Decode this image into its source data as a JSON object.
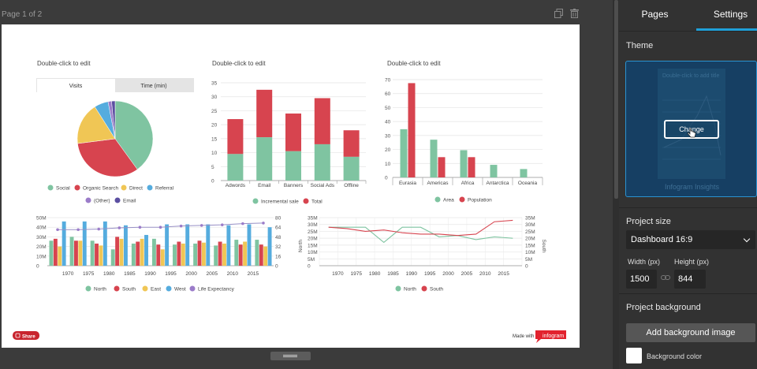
{
  "editor": {
    "page_label": "Page 1 of 2"
  },
  "charts": {
    "pie": {
      "title": "Double-click to edit",
      "tabs": [
        "Visits",
        "Time (min)"
      ],
      "legend": [
        "Social",
        "Organic Search",
        "Direct",
        "Referral",
        "(Other)",
        "Email"
      ],
      "colors": [
        "#7fc4a1",
        "#d7444f",
        "#f0c655",
        "#55acde",
        "#9b7cc9",
        "#5b4fa1"
      ]
    },
    "stack": {
      "title": "Double-click to edit",
      "legend": [
        "Incremental sale",
        "Total"
      ],
      "yticks": [
        "35",
        "30",
        "25",
        "20",
        "15",
        "10",
        "5",
        "0"
      ]
    },
    "bars2": {
      "title": "Double-click to edit",
      "legend": [
        "Area",
        "Population"
      ],
      "yticks": [
        "70",
        "60",
        "50",
        "40",
        "30",
        "20",
        "10",
        "0"
      ]
    },
    "combo": {
      "legend": [
        "North",
        "South",
        "East",
        "West",
        "Life Expectancy"
      ],
      "yticks_left": [
        "50M",
        "40M",
        "30M",
        "20M",
        "10M",
        "0"
      ],
      "yticks_right": [
        "80",
        "64",
        "48",
        "32",
        "16",
        "0"
      ]
    },
    "lines": {
      "legend": [
        "North",
        "South"
      ],
      "yticks": [
        "35M",
        "30M",
        "25M",
        "20M",
        "15M",
        "10M",
        "5M",
        "0"
      ],
      "yticks_right": [
        "35M",
        "30M",
        "25M",
        "20M",
        "15M",
        "10M",
        "5M",
        "0"
      ],
      "ylabel_left": "North",
      "ylabel_right": "South"
    }
  },
  "chart_data": [
    {
      "type": "pie",
      "title": "Double-click to edit",
      "categories": [
        "Social",
        "Organic Search",
        "Direct",
        "Referral",
        "(Other)",
        "Email"
      ],
      "values": [
        40,
        33,
        18,
        6,
        1.5,
        1.5
      ]
    },
    {
      "type": "bar",
      "title": "Double-click to edit",
      "categories": [
        "Adwords",
        "Email",
        "Banners",
        "Social Ads",
        "Offline"
      ],
      "series": [
        {
          "name": "Incremental sale",
          "values": [
            9.5,
            15.5,
            10.5,
            13,
            8.5
          ]
        },
        {
          "name": "Total",
          "values": [
            22,
            32.5,
            24,
            29.5,
            18
          ]
        }
      ],
      "ylim": [
        0,
        35
      ]
    },
    {
      "type": "bar",
      "title": "Double-click to edit",
      "categories": [
        "Eurasia",
        "Americas",
        "Africa",
        "Antarctica",
        "Oceania"
      ],
      "series": [
        {
          "name": "Area",
          "values": [
            34.5,
            27,
            19.5,
            9,
            6
          ]
        },
        {
          "name": "Population",
          "values": [
            67.5,
            14.5,
            14.5,
            0,
            0
          ]
        }
      ],
      "ylim": [
        0,
        70
      ]
    },
    {
      "type": "bar",
      "categories": [
        "1965",
        "1970",
        "1975",
        "1980",
        "1985",
        "1990",
        "1995",
        "2000",
        "2005",
        "2010",
        "2015"
      ],
      "series": [
        {
          "name": "North",
          "values": [
            26,
            30,
            26,
            17,
            23,
            28,
            22,
            23,
            21,
            27,
            27
          ]
        },
        {
          "name": "South",
          "values": [
            28,
            26,
            23,
            30,
            25,
            22,
            25,
            26,
            25,
            22,
            22
          ]
        },
        {
          "name": "East",
          "values": [
            20,
            26,
            21,
            28,
            28,
            17,
            23,
            24,
            23,
            25,
            20
          ]
        },
        {
          "name": "West",
          "values": [
            46,
            46,
            46,
            42,
            32,
            43,
            43,
            43,
            42,
            43,
            40
          ]
        },
        {
          "name": "Life Expectancy",
          "values": [
            60,
            60,
            61,
            63,
            64,
            64,
            66,
            67,
            68,
            70,
            71
          ]
        }
      ],
      "ylim": [
        0,
        50000000
      ]
    },
    {
      "type": "line",
      "categories": [
        "1965",
        "1970",
        "1975",
        "1980",
        "1985",
        "1990",
        "1995",
        "2000",
        "2005",
        "2010",
        "2015"
      ],
      "series": [
        {
          "name": "North",
          "values": [
            28000000,
            28000000,
            28000000,
            17000000,
            28000000,
            28000000,
            21000000,
            22000000,
            19000000,
            21000000,
            20000000
          ]
        },
        {
          "name": "South",
          "values": [
            28000000,
            27000000,
            25000000,
            26000000,
            24000000,
            23000000,
            23000000,
            22000000,
            23000000,
            32000000,
            33000000
          ]
        }
      ],
      "ylim": [
        0,
        35000000
      ]
    }
  ],
  "canvas": {
    "share_label": "Share",
    "made_with": "Made with",
    "brand": "infogram"
  },
  "panel": {
    "tabs": [
      "Pages",
      "Settings"
    ],
    "theme_label": "Theme",
    "theme_preview_title": "Double-click to add title",
    "change_label": "Change",
    "theme_name": "Infogram Insights",
    "project_size_label": "Project size",
    "project_size_value": "Dashboard 16:9",
    "width_label": "Width (px)",
    "height_label": "Height (px)",
    "width_value": "1500",
    "height_value": "844",
    "background_label": "Project background",
    "add_bg_label": "Add background image",
    "bg_color_label": "Background color"
  }
}
